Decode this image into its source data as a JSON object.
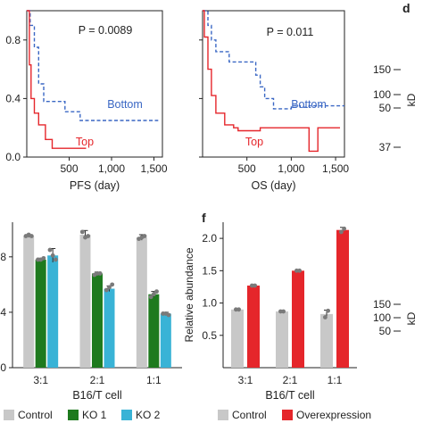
{
  "panel_labels": {
    "d": "d",
    "f": "f"
  },
  "colors": {
    "top": "#e5262b",
    "bottom": "#3a67c4",
    "control": "#c8c8c8",
    "ko1": "#1e7a1e",
    "ko2": "#39b3d6",
    "overexpression": "#e5262b",
    "point": "#7a7a7a",
    "axis": "#222222"
  },
  "chart_data": [
    {
      "id": "pfs",
      "type": "line",
      "xlabel": "PFS (day)",
      "xticks": [
        "500",
        "1,000",
        "1,500"
      ],
      "xtick_values": [
        500,
        1000,
        1500
      ],
      "yticks": [
        "0.0",
        "0.4",
        "0.8"
      ],
      "ytick_values": [
        0,
        0.4,
        0.8
      ],
      "xlim": [
        0,
        1600
      ],
      "ylim": [
        0,
        1.0
      ],
      "annotation": "P = 0.0089",
      "series": [
        {
          "name": "Bottom",
          "style": "dashed",
          "points": [
            [
              0,
              1.0
            ],
            [
              40,
              1.0
            ],
            [
              40,
              0.9
            ],
            [
              90,
              0.9
            ],
            [
              90,
              0.75
            ],
            [
              140,
              0.75
            ],
            [
              140,
              0.5
            ],
            [
              200,
              0.5
            ],
            [
              200,
              0.38
            ],
            [
              450,
              0.38
            ],
            [
              450,
              0.31
            ],
            [
              630,
              0.31
            ],
            [
              630,
              0.25
            ],
            [
              1550,
              0.25
            ]
          ]
        },
        {
          "name": "Top",
          "style": "solid",
          "points": [
            [
              0,
              1.0
            ],
            [
              30,
              1.0
            ],
            [
              30,
              0.63
            ],
            [
              50,
              0.63
            ],
            [
              50,
              0.4
            ],
            [
              90,
              0.4
            ],
            [
              90,
              0.3
            ],
            [
              140,
              0.3
            ],
            [
              140,
              0.22
            ],
            [
              220,
              0.22
            ],
            [
              220,
              0.12
            ],
            [
              300,
              0.12
            ],
            [
              300,
              0.06
            ],
            [
              700,
              0.06
            ]
          ]
        }
      ]
    },
    {
      "id": "os",
      "type": "line",
      "xlabel": "OS (day)",
      "xticks": [
        "500",
        "1,000",
        "1,500"
      ],
      "xtick_values": [
        500,
        1000,
        1500
      ],
      "yticks": [],
      "ytick_values": [
        0,
        0.4,
        0.8
      ],
      "xlim": [
        0,
        1600
      ],
      "ylim": [
        0,
        1.0
      ],
      "annotation": "P = 0.011",
      "series": [
        {
          "name": "Bottom",
          "style": "dashed",
          "points": [
            [
              0,
              1.0
            ],
            [
              60,
              1.0
            ],
            [
              60,
              0.9
            ],
            [
              100,
              0.9
            ],
            [
              100,
              0.8
            ],
            [
              150,
              0.8
            ],
            [
              150,
              0.72
            ],
            [
              300,
              0.72
            ],
            [
              300,
              0.65
            ],
            [
              600,
              0.65
            ],
            [
              600,
              0.56
            ],
            [
              650,
              0.56
            ],
            [
              650,
              0.48
            ],
            [
              700,
              0.48
            ],
            [
              700,
              0.4
            ],
            [
              800,
              0.4
            ],
            [
              800,
              0.33
            ],
            [
              1000,
              0.33
            ],
            [
              1000,
              0.35
            ],
            [
              1100,
              0.35
            ],
            [
              1100,
              0.34
            ],
            [
              1200,
              0.34
            ],
            [
              1200,
              0.35
            ],
            [
              1600,
              0.35
            ]
          ]
        },
        {
          "name": "Top",
          "style": "solid",
          "points": [
            [
              0,
              1.0
            ],
            [
              20,
              1.0
            ],
            [
              20,
              0.82
            ],
            [
              60,
              0.82
            ],
            [
              60,
              0.6
            ],
            [
              100,
              0.6
            ],
            [
              100,
              0.42
            ],
            [
              150,
              0.42
            ],
            [
              150,
              0.3
            ],
            [
              250,
              0.3
            ],
            [
              250,
              0.22
            ],
            [
              350,
              0.22
            ],
            [
              350,
              0.2
            ],
            [
              400,
              0.2
            ],
            [
              400,
              0.18
            ],
            [
              650,
              0.18
            ],
            [
              650,
              0.2
            ],
            [
              900,
              0.2
            ],
            [
              900,
              0.2
            ],
            [
              1200,
              0.2
            ],
            [
              1200,
              0.04
            ],
            [
              1300,
              0.04
            ],
            [
              1300,
              0.2
            ],
            [
              1550,
              0.2
            ]
          ]
        }
      ]
    },
    {
      "id": "e",
      "type": "bar",
      "xlabel": "B16/T cell",
      "ylabel": "",
      "categories": [
        "3:1",
        "2:1",
        "1:1"
      ],
      "yticks": [
        ".0",
        ".4",
        ".8"
      ],
      "ytick_values": [
        0,
        0.4,
        0.8
      ],
      "ylim": [
        0,
        1.05
      ],
      "series": [
        {
          "name": "Control",
          "values": [
            0.95,
            0.96,
            0.94
          ],
          "errors": [
            0.01,
            0.03,
            0.02
          ],
          "points": [
            [
              0.95,
              0.96,
              0.95
            ],
            [
              0.98,
              0.94,
              0.95
            ],
            [
              0.93,
              0.94,
              0.95
            ]
          ]
        },
        {
          "name": "KO 1",
          "values": [
            0.78,
            0.68,
            0.53
          ],
          "errors": [
            0.01,
            0.01,
            0.02
          ],
          "points": [
            [
              0.78,
              0.78,
              0.79
            ],
            [
              0.67,
              0.68,
              0.68
            ],
            [
              0.51,
              0.53,
              0.55
            ]
          ]
        },
        {
          "name": "KO 2",
          "values": [
            0.81,
            0.57,
            0.39
          ],
          "errors": [
            0.05,
            0.02,
            0.01
          ],
          "points": [
            [
              0.85,
              0.81,
              0.78
            ],
            [
              0.56,
              0.58,
              0.6
            ],
            [
              0.39,
              0.39,
              0.38
            ]
          ]
        }
      ]
    },
    {
      "id": "f",
      "type": "bar",
      "xlabel": "B16/T cell",
      "ylabel": "Relative abundance",
      "categories": [
        "3:1",
        "2:1",
        "1:1"
      ],
      "yticks": [
        "0.5",
        "1.0",
        "1.5",
        "2.0"
      ],
      "ytick_values": [
        0.5,
        1.0,
        1.5,
        2.0
      ],
      "ylim": [
        0,
        2.25
      ],
      "series": [
        {
          "name": "Control",
          "values": [
            0.9,
            0.87,
            0.83
          ],
          "errors": [
            0.01,
            0.01,
            0.06
          ],
          "points": [
            [
              0.9,
              0.9
            ],
            [
              0.87,
              0.87
            ],
            [
              0.78,
              0.88
            ]
          ]
        },
        {
          "name": "Overexpression",
          "values": [
            1.27,
            1.5,
            2.13
          ],
          "errors": [
            0.01,
            0.01,
            0.04
          ],
          "points": [
            [
              1.27,
              1.27
            ],
            [
              1.5,
              1.5
            ],
            [
              2.1,
              2.15
            ]
          ]
        }
      ]
    },
    {
      "id": "d",
      "type": "table",
      "unit": "kD",
      "markers_top": [
        "150",
        "100",
        "50",
        "37"
      ],
      "markers_bottom": [
        "150",
        "100",
        "50"
      ]
    }
  ],
  "legends": {
    "e": [
      "Control",
      "KO 1",
      "KO 2"
    ],
    "f": [
      "Control",
      "Overexpression"
    ]
  }
}
